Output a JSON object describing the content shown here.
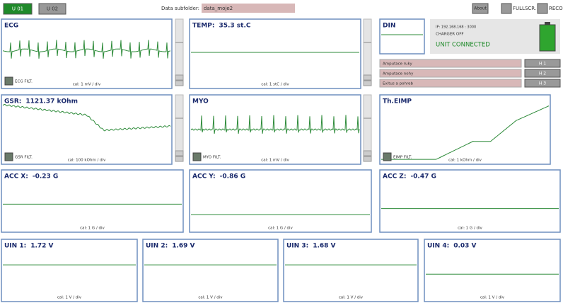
{
  "top_bar": {
    "unit_buttons": [
      "U 01",
      "U 02"
    ],
    "subfolder_label": "Data subfolder:",
    "subfolder_value": "data_moje2",
    "about": "About",
    "fullscreen": "FULLSCR.",
    "record": "RECORD"
  },
  "panels": [
    {
      "title": "ECG",
      "cal": "cal: 1 mV / div",
      "filter": "ECG FILT."
    },
    {
      "title": "TEMP:",
      "value": "35.3 st.C",
      "cal": "cal: 1 stC / div"
    },
    {
      "title": "DIN"
    },
    {
      "title": "GSR:",
      "value": "1121.37 kOhm",
      "cal": "cal: 100 kOhm / div",
      "filter": "GSR FILT."
    },
    {
      "title": "MYO",
      "cal": "cal: 1 mV / div",
      "filter": "MYO FILT."
    },
    {
      "title": "Th.EIMP",
      "cal": "cal: 1 kOhm / div",
      "filter": "EIMP FILT."
    },
    {
      "title": "ACC X:",
      "value": "-0.23 G",
      "cal": "cal: 1 G / div"
    },
    {
      "title": "ACC Y:",
      "value": "-0.86 G",
      "cal": "cal: 1 G / div"
    },
    {
      "title": "ACC Z:",
      "value": "-0.47 G",
      "cal": "cal: 1 G / div"
    },
    {
      "title": "UIN 1:",
      "value": "1.72 V",
      "cal": "cal: 1 V / div"
    },
    {
      "title": "UIN 2:",
      "value": "1.69 V",
      "cal": "cal: 1 V / div"
    },
    {
      "title": "UIN 3:",
      "value": "1.68 V",
      "cal": "cal: 1 V / div"
    },
    {
      "title": "UIN 4:",
      "value": "0.03 V",
      "cal": "cal: 1 V / div"
    }
  ],
  "status": {
    "ip": "IP: 192.168.168 : 3000",
    "charger": "CHARGER OFF",
    "connection": "UNIT CONNECTED"
  },
  "actions": [
    {
      "label": "Amputace ruky",
      "button": "H 1"
    },
    {
      "label": "Amputace nohy",
      "button": "H 2"
    },
    {
      "label": "Exitus a pohreb",
      "button": "H 3"
    }
  ]
}
